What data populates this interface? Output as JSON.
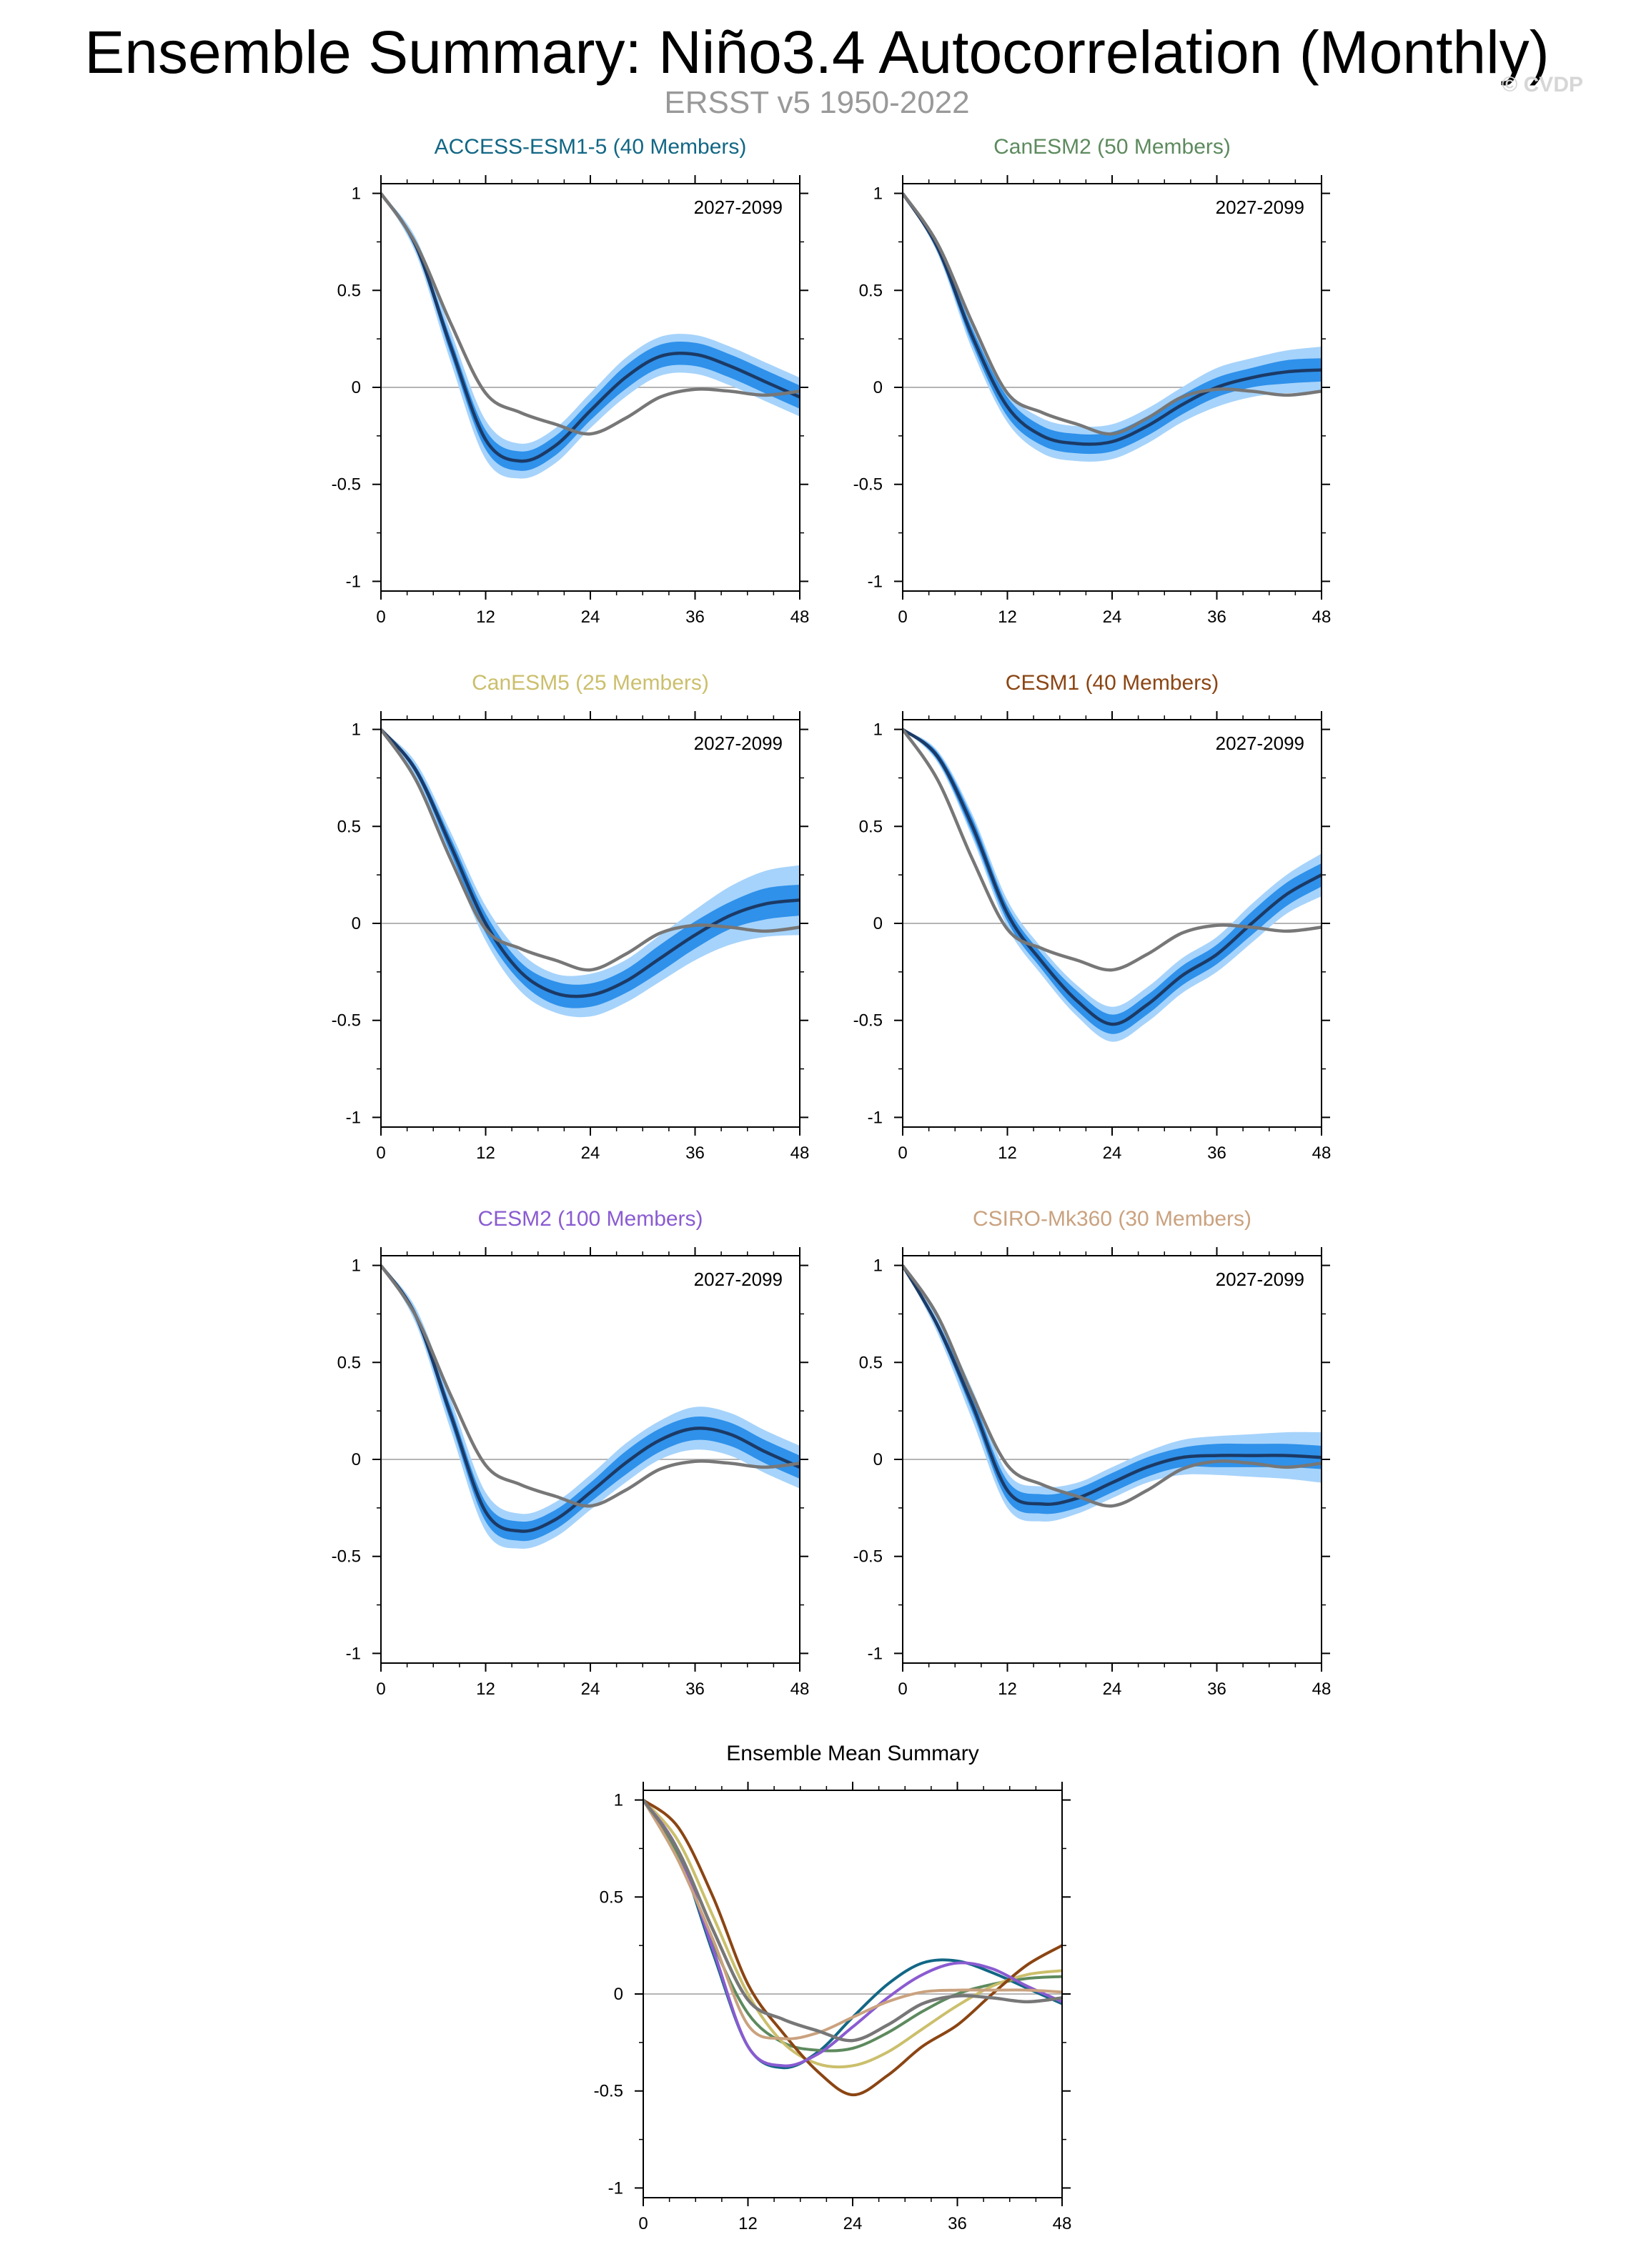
{
  "figure": {
    "title": "Ensemble Summary: Niño3.4 Autocorrelation (Monthly)",
    "subtitle": "ERSST v5 1950-2022",
    "watermark": "© CVDP"
  },
  "colors": {
    "band_outer": "#a6d3fb",
    "band_inner": "#2f91ea",
    "ensemble_mean": "#1b3a66",
    "observations": "#777777",
    "zero_line": "#b5b5b5",
    "axis": "#000000"
  },
  "chart_data": [
    {
      "type": "line",
      "title": "ACCESS-ESM1-5 (40 Members)",
      "title_color": "#126785",
      "period_label": "2027-2099",
      "x_ticks": [
        0,
        12,
        24,
        36,
        48
      ],
      "y_ticks": [
        1,
        0.5,
        0,
        -0.5,
        -1
      ],
      "y_tick_labels": [
        "1",
        "0.5",
        "0",
        "-0.5",
        "-1"
      ],
      "xlim": [
        0,
        48
      ],
      "ylim": [
        -1.05,
        1.05
      ],
      "lags": [
        0,
        4,
        8,
        12,
        16,
        20,
        24,
        28,
        32,
        36,
        40,
        44,
        48
      ],
      "ensemble_mean": [
        1.0,
        0.73,
        0.21,
        -0.27,
        -0.38,
        -0.3,
        -0.12,
        0.05,
        0.16,
        0.17,
        0.11,
        0.03,
        -0.05
      ],
      "inner_spread": [
        0.0,
        0.02,
        0.04,
        0.05,
        0.05,
        0.05,
        0.05,
        0.06,
        0.06,
        0.06,
        0.06,
        0.06,
        0.06
      ],
      "outer_spread": [
        0.0,
        0.04,
        0.08,
        0.1,
        0.09,
        0.09,
        0.09,
        0.1,
        0.1,
        0.1,
        0.1,
        0.1,
        0.1
      ],
      "observations": [
        1.0,
        0.74,
        0.33,
        -0.03,
        -0.13,
        -0.19,
        -0.24,
        -0.16,
        -0.05,
        -0.01,
        -0.02,
        -0.04,
        -0.02
      ]
    },
    {
      "type": "line",
      "title": "CanESM2 (50 Members)",
      "title_color": "#5d8a5e",
      "period_label": "2027-2099",
      "x_ticks": [
        0,
        12,
        24,
        36,
        48
      ],
      "y_ticks": [
        1,
        0.5,
        0,
        -0.5,
        -1
      ],
      "y_tick_labels": [
        "1",
        "0.5",
        "0",
        "-0.5",
        "-1"
      ],
      "xlim": [
        0,
        48
      ],
      "ylim": [
        -1.05,
        1.05
      ],
      "lags": [
        0,
        4,
        8,
        12,
        16,
        20,
        24,
        28,
        32,
        36,
        40,
        44,
        48
      ],
      "ensemble_mean": [
        1.0,
        0.72,
        0.26,
        -0.1,
        -0.25,
        -0.29,
        -0.28,
        -0.2,
        -0.09,
        0.0,
        0.05,
        0.08,
        0.09
      ],
      "inner_spread": [
        0.0,
        0.02,
        0.04,
        0.05,
        0.05,
        0.05,
        0.05,
        0.05,
        0.05,
        0.05,
        0.05,
        0.06,
        0.06
      ],
      "outer_spread": [
        0.0,
        0.03,
        0.07,
        0.08,
        0.09,
        0.09,
        0.09,
        0.09,
        0.09,
        0.1,
        0.1,
        0.11,
        0.12
      ],
      "observations": [
        1.0,
        0.74,
        0.33,
        -0.03,
        -0.13,
        -0.19,
        -0.24,
        -0.16,
        -0.05,
        -0.01,
        -0.02,
        -0.04,
        -0.02
      ]
    },
    {
      "type": "line",
      "title": "CanESM5 (25 Members)",
      "title_color": "#cbbf6c",
      "period_label": "2027-2099",
      "x_ticks": [
        0,
        12,
        24,
        36,
        48
      ],
      "y_ticks": [
        1,
        0.5,
        0,
        -0.5,
        -1
      ],
      "y_tick_labels": [
        "1",
        "0.5",
        "0",
        "-0.5",
        "-1"
      ],
      "xlim": [
        0,
        48
      ],
      "ylim": [
        -1.05,
        1.05
      ],
      "lags": [
        0,
        4,
        8,
        12,
        16,
        20,
        24,
        28,
        32,
        36,
        40,
        44,
        48
      ],
      "ensemble_mean": [
        1.0,
        0.79,
        0.4,
        0.0,
        -0.25,
        -0.36,
        -0.37,
        -0.3,
        -0.18,
        -0.06,
        0.04,
        0.1,
        0.12
      ],
      "inner_spread": [
        0.0,
        0.02,
        0.04,
        0.05,
        0.05,
        0.06,
        0.06,
        0.06,
        0.07,
        0.07,
        0.07,
        0.08,
        0.08
      ],
      "outer_spread": [
        0.0,
        0.04,
        0.07,
        0.09,
        0.1,
        0.1,
        0.11,
        0.11,
        0.12,
        0.13,
        0.15,
        0.17,
        0.18
      ],
      "observations": [
        1.0,
        0.74,
        0.33,
        -0.03,
        -0.13,
        -0.19,
        -0.24,
        -0.16,
        -0.05,
        -0.01,
        -0.02,
        -0.04,
        -0.02
      ]
    },
    {
      "type": "line",
      "title": "CESM1 (40 Members)",
      "title_color": "#8b4513",
      "period_label": "2027-2099",
      "x_ticks": [
        0,
        12,
        24,
        36,
        48
      ],
      "y_ticks": [
        1,
        0.5,
        0,
        -0.5,
        -1
      ],
      "y_tick_labels": [
        "1",
        "0.5",
        "0",
        "-0.5",
        "-1"
      ],
      "xlim": [
        0,
        48
      ],
      "ylim": [
        -1.05,
        1.05
      ],
      "lags": [
        0,
        4,
        8,
        12,
        16,
        20,
        24,
        28,
        32,
        36,
        40,
        44,
        48
      ],
      "ensemble_mean": [
        1.0,
        0.86,
        0.5,
        0.05,
        -0.2,
        -0.4,
        -0.52,
        -0.42,
        -0.27,
        -0.16,
        0.0,
        0.15,
        0.25
      ],
      "inner_spread": [
        0.0,
        0.02,
        0.04,
        0.04,
        0.04,
        0.05,
        0.05,
        0.05,
        0.05,
        0.05,
        0.06,
        0.06,
        0.06
      ],
      "outer_spread": [
        0.0,
        0.03,
        0.06,
        0.07,
        0.07,
        0.08,
        0.09,
        0.09,
        0.09,
        0.09,
        0.1,
        0.1,
        0.11
      ],
      "observations": [
        1.0,
        0.74,
        0.33,
        -0.03,
        -0.13,
        -0.19,
        -0.24,
        -0.16,
        -0.05,
        -0.01,
        -0.02,
        -0.04,
        -0.02
      ]
    },
    {
      "type": "line",
      "title": "CESM2 (100 Members)",
      "title_color": "#8a5bd1",
      "period_label": "2027-2099",
      "x_ticks": [
        0,
        12,
        24,
        36,
        48
      ],
      "y_ticks": [
        1,
        0.5,
        0,
        -0.5,
        -1
      ],
      "y_tick_labels": [
        "1",
        "0.5",
        "0",
        "-0.5",
        "-1"
      ],
      "xlim": [
        0,
        48
      ],
      "ylim": [
        -1.05,
        1.05
      ],
      "lags": [
        0,
        4,
        8,
        12,
        16,
        20,
        24,
        28,
        32,
        36,
        40,
        44,
        48
      ],
      "ensemble_mean": [
        1.0,
        0.74,
        0.23,
        -0.27,
        -0.37,
        -0.31,
        -0.17,
        -0.02,
        0.1,
        0.16,
        0.13,
        0.04,
        -0.04
      ],
      "inner_spread": [
        0.0,
        0.02,
        0.04,
        0.05,
        0.05,
        0.05,
        0.05,
        0.06,
        0.06,
        0.06,
        0.06,
        0.06,
        0.06
      ],
      "outer_spread": [
        0.0,
        0.04,
        0.08,
        0.1,
        0.09,
        0.09,
        0.09,
        0.1,
        0.1,
        0.11,
        0.11,
        0.11,
        0.11
      ],
      "observations": [
        1.0,
        0.74,
        0.33,
        -0.03,
        -0.13,
        -0.19,
        -0.24,
        -0.16,
        -0.05,
        -0.01,
        -0.02,
        -0.04,
        -0.02
      ]
    },
    {
      "type": "line",
      "title": "CSIRO-Mk360 (30 Members)",
      "title_color": "#caa27f",
      "period_label": "2027-2099",
      "x_ticks": [
        0,
        12,
        24,
        36,
        48
      ],
      "y_ticks": [
        1,
        0.5,
        0,
        -0.5,
        -1
      ],
      "y_tick_labels": [
        "1",
        "0.5",
        "0",
        "-0.5",
        "-1"
      ],
      "xlim": [
        0,
        48
      ],
      "ylim": [
        -1.05,
        1.05
      ],
      "lags": [
        0,
        4,
        8,
        12,
        16,
        20,
        24,
        28,
        32,
        36,
        40,
        44,
        48
      ],
      "ensemble_mean": [
        1.0,
        0.69,
        0.28,
        -0.16,
        -0.23,
        -0.2,
        -0.12,
        -0.04,
        0.01,
        0.02,
        0.02,
        0.02,
        0.01
      ],
      "inner_spread": [
        0.0,
        0.02,
        0.04,
        0.05,
        0.05,
        0.05,
        0.05,
        0.05,
        0.05,
        0.06,
        0.06,
        0.06,
        0.06
      ],
      "outer_spread": [
        0.0,
        0.04,
        0.08,
        0.09,
        0.09,
        0.08,
        0.08,
        0.08,
        0.09,
        0.1,
        0.11,
        0.12,
        0.13
      ],
      "observations": [
        1.0,
        0.74,
        0.33,
        -0.03,
        -0.13,
        -0.19,
        -0.24,
        -0.16,
        -0.05,
        -0.01,
        -0.02,
        -0.04,
        -0.02
      ]
    },
    {
      "type": "line",
      "title": "Ensemble Mean Summary",
      "title_color": "#000000",
      "x_ticks": [
        0,
        12,
        24,
        36,
        48
      ],
      "y_ticks": [
        1,
        0.5,
        0,
        -0.5,
        -1
      ],
      "y_tick_labels": [
        "1",
        "0.5",
        "0",
        "-0.5",
        "-1"
      ],
      "xlim": [
        0,
        48
      ],
      "ylim": [
        -1.05,
        1.05
      ],
      "lags": [
        0,
        4,
        8,
        12,
        16,
        20,
        24,
        28,
        32,
        36,
        40,
        44,
        48
      ],
      "observations": [
        1.0,
        0.74,
        0.33,
        -0.03,
        -0.13,
        -0.19,
        -0.24,
        -0.16,
        -0.05,
        -0.01,
        -0.02,
        -0.04,
        -0.02
      ],
      "series": [
        {
          "name": "ACCESS-ESM1-5",
          "color": "#126785",
          "values": [
            1.0,
            0.73,
            0.21,
            -0.27,
            -0.38,
            -0.3,
            -0.12,
            0.05,
            0.16,
            0.17,
            0.11,
            0.03,
            -0.05
          ]
        },
        {
          "name": "CanESM2",
          "color": "#5d8a5e",
          "values": [
            1.0,
            0.72,
            0.26,
            -0.1,
            -0.25,
            -0.29,
            -0.28,
            -0.2,
            -0.09,
            0.0,
            0.05,
            0.08,
            0.09
          ]
        },
        {
          "name": "CanESM5",
          "color": "#cbbf6c",
          "values": [
            1.0,
            0.79,
            0.4,
            0.0,
            -0.25,
            -0.36,
            -0.37,
            -0.3,
            -0.18,
            -0.06,
            0.04,
            0.1,
            0.12
          ]
        },
        {
          "name": "CESM1",
          "color": "#8b4513",
          "values": [
            1.0,
            0.86,
            0.5,
            0.05,
            -0.2,
            -0.4,
            -0.52,
            -0.42,
            -0.27,
            -0.16,
            0.0,
            0.15,
            0.25
          ]
        },
        {
          "name": "CESM2",
          "color": "#8a5bd1",
          "values": [
            1.0,
            0.74,
            0.23,
            -0.27,
            -0.37,
            -0.31,
            -0.17,
            -0.02,
            0.1,
            0.16,
            0.13,
            0.04,
            -0.04
          ]
        },
        {
          "name": "CSIRO-Mk360",
          "color": "#caa27f",
          "values": [
            1.0,
            0.69,
            0.28,
            -0.16,
            -0.23,
            -0.2,
            -0.12,
            -0.04,
            0.01,
            0.02,
            0.02,
            0.02,
            0.01
          ]
        }
      ]
    }
  ]
}
